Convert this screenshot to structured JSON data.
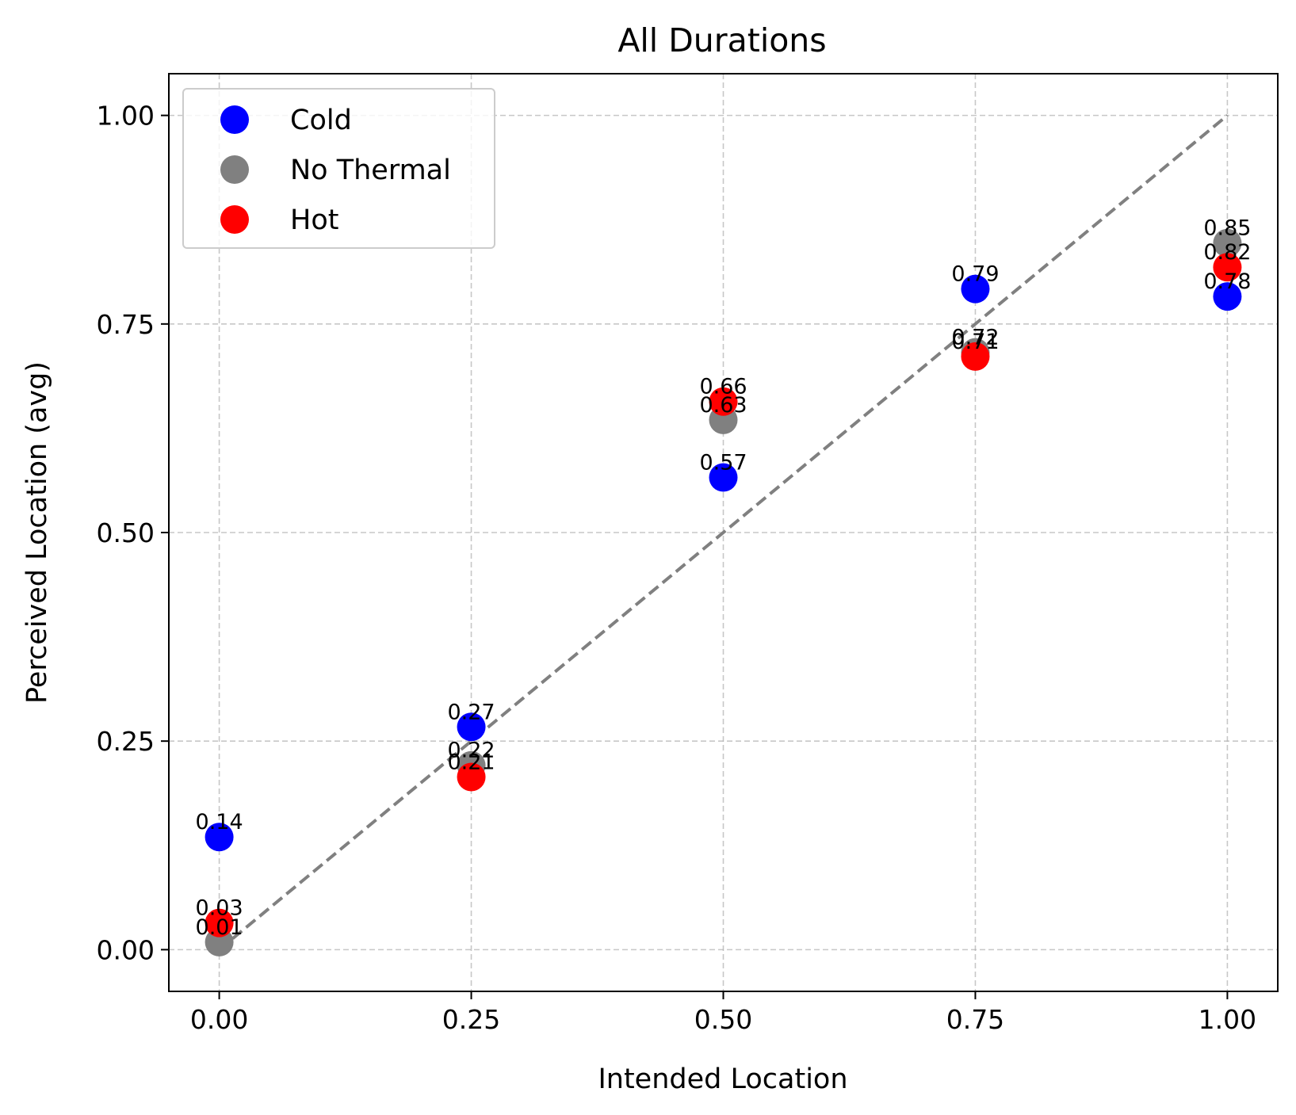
{
  "chart_data": {
    "type": "scatter",
    "title": "All Durations",
    "xlabel": "Intended Location",
    "ylabel": "Perceived Location (avg)",
    "xlim": [
      -0.05,
      1.05
    ],
    "ylim": [
      -0.05,
      1.05
    ],
    "xticks": [
      "0.00",
      "0.25",
      "0.50",
      "0.75",
      "1.00"
    ],
    "yticks": [
      "0.00",
      "0.25",
      "0.50",
      "0.75",
      "1.00"
    ],
    "grid": true,
    "legend_position": "top-left",
    "reference_line": {
      "style": "dashed",
      "color": "#808080",
      "from": [
        0,
        0
      ],
      "to": [
        1,
        1
      ]
    },
    "series": [
      {
        "name": "Cold",
        "color": "#0000ff",
        "points": [
          {
            "x": 0.0,
            "y": 0.135,
            "label": "0.14"
          },
          {
            "x": 0.25,
            "y": 0.267,
            "label": "0.27"
          },
          {
            "x": 0.5,
            "y": 0.566,
            "label": "0.57"
          },
          {
            "x": 0.75,
            "y": 0.792,
            "label": "0.79"
          },
          {
            "x": 1.0,
            "y": 0.783,
            "label": "0.78"
          }
        ]
      },
      {
        "name": "No Thermal",
        "color": "#808080",
        "points": [
          {
            "x": 0.0,
            "y": 0.009,
            "label": "0.01"
          },
          {
            "x": 0.25,
            "y": 0.221,
            "label": "0.22"
          },
          {
            "x": 0.5,
            "y": 0.635,
            "label": "0.63"
          },
          {
            "x": 0.75,
            "y": 0.716,
            "label": "0.72"
          },
          {
            "x": 1.0,
            "y": 0.847,
            "label": "0.85"
          }
        ]
      },
      {
        "name": "Hot",
        "color": "#ff0000",
        "points": [
          {
            "x": 0.0,
            "y": 0.032,
            "label": "0.03"
          },
          {
            "x": 0.25,
            "y": 0.207,
            "label": "0.21"
          },
          {
            "x": 0.5,
            "y": 0.657,
            "label": "0.66"
          },
          {
            "x": 0.75,
            "y": 0.711,
            "label": "0.71"
          },
          {
            "x": 1.0,
            "y": 0.818,
            "label": "0.82"
          }
        ]
      }
    ]
  }
}
